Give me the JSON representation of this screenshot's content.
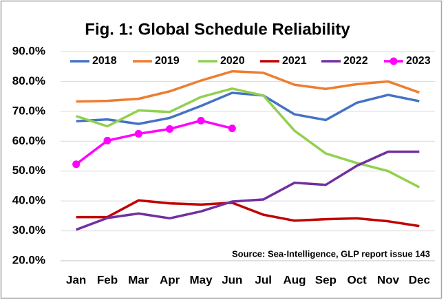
{
  "chart_data": {
    "type": "line",
    "title": "Fig. 1: Global Schedule Reliability",
    "annotation": "Source: Sea-Intelligence, GLP report issue 143",
    "categories": [
      "Jan",
      "Feb",
      "Mar",
      "Apr",
      "May",
      "Jun",
      "Jul",
      "Aug",
      "Sep",
      "Oct",
      "Nov",
      "Dec"
    ],
    "series": [
      {
        "name": "2018",
        "color": "#4472c4",
        "values": [
          66.7,
          67.3,
          65.8,
          67.8,
          71.8,
          76.2,
          75.3,
          69.0,
          67.1,
          72.9,
          75.5,
          73.4
        ]
      },
      {
        "name": "2019",
        "color": "#ed7d31",
        "values": [
          73.3,
          73.5,
          74.2,
          76.7,
          80.3,
          83.4,
          82.9,
          78.9,
          77.5,
          79.1,
          80.0,
          76.3
        ]
      },
      {
        "name": "2020",
        "color": "#92d050",
        "values": [
          68.4,
          65.0,
          70.3,
          69.8,
          74.8,
          77.6,
          75.3,
          63.5,
          55.9,
          52.7,
          50.0,
          44.6
        ]
      },
      {
        "name": "2021",
        "color": "#c00000",
        "values": [
          34.6,
          34.6,
          40.2,
          39.2,
          38.8,
          39.4,
          35.4,
          33.4,
          33.9,
          34.2,
          33.2,
          31.6
        ]
      },
      {
        "name": "2022",
        "color": "#7030a0",
        "values": [
          30.4,
          34.3,
          35.8,
          34.2,
          36.5,
          39.8,
          40.5,
          46.1,
          45.4,
          51.8,
          56.5,
          56.5
        ]
      },
      {
        "name": "2023",
        "color": "#ff00ff",
        "marker": "circle",
        "values": [
          52.3,
          60.2,
          62.5,
          64.1,
          66.9,
          64.3,
          null,
          null,
          null,
          null,
          null,
          null
        ]
      }
    ],
    "ylim": [
      20,
      90
    ],
    "yticks": [
      {
        "value": 20,
        "label": "20.0%"
      },
      {
        "value": 30,
        "label": "30.0%"
      },
      {
        "value": 40,
        "label": "40.0%"
      },
      {
        "value": 50,
        "label": "50.0%"
      },
      {
        "value": 60,
        "label": "60.0%"
      },
      {
        "value": 70,
        "label": "70.0%"
      },
      {
        "value": 80,
        "label": "80.0%"
      },
      {
        "value": 90,
        "label": "90.0%"
      }
    ],
    "grid": true,
    "legend": "top"
  }
}
